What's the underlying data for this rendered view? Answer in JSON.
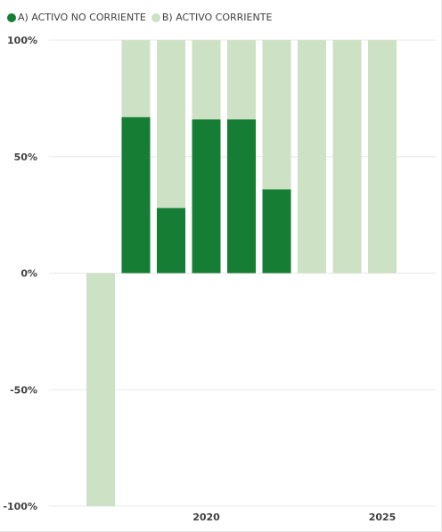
{
  "chart_data": {
    "type": "bar",
    "stacked": true,
    "title": "",
    "xlabel": "",
    "ylabel": "",
    "ylim": [
      -100,
      100
    ],
    "y_ticks": [
      "100%",
      "50%",
      "0%",
      "-50%",
      "-100%"
    ],
    "y_tick_values": [
      100,
      50,
      0,
      -50,
      -100
    ],
    "x_ticks": [
      "2020",
      "2025"
    ],
    "x_tick_values": [
      2020,
      2025
    ],
    "x": [
      2017,
      2018,
      2019,
      2020,
      2021,
      2022,
      2023,
      2024,
      2025
    ],
    "series": [
      {
        "name": "A) ACTIVO NO CORRIENTE",
        "color": "#167d35",
        "values": [
          0,
          67,
          28,
          66,
          66,
          36,
          0,
          0,
          0
        ]
      },
      {
        "name": "B) ACTIVO CORRIENTE",
        "color": "#cde2c5",
        "values": [
          -100,
          33,
          72,
          34,
          34,
          64,
          100,
          100,
          100
        ]
      }
    ],
    "grid": true,
    "legend_position": "top-left"
  }
}
